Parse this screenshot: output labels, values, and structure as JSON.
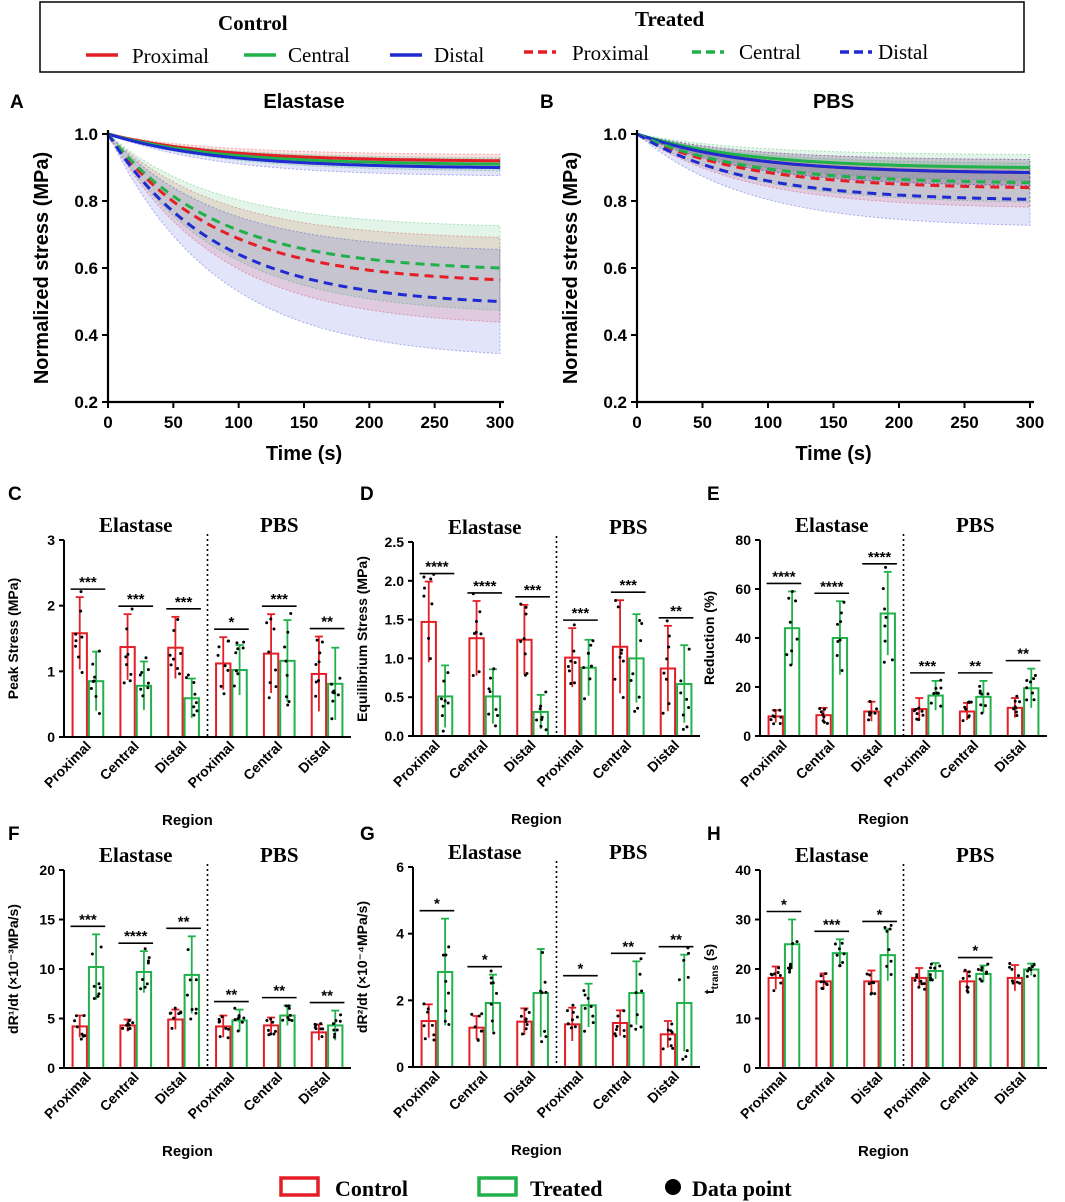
{
  "colors": {
    "control": "#e41e26",
    "treated": "#21b14b",
    "blue": "#1f2bd1",
    "text": "#000000"
  },
  "legend_top": {
    "control_title": "Control",
    "treated_title": "Treated",
    "control_items": [
      "Proximal",
      "Central",
      "Distal"
    ],
    "treated_items": [
      "Proximal",
      "Central",
      "Distal"
    ]
  },
  "legend_bottom": {
    "control": "Control",
    "treated": "Treated",
    "data_point": "Data point"
  },
  "chart_data": [
    {
      "id": "A",
      "type": "line",
      "title": "Elastase",
      "xlabel": "Time (s)",
      "ylabel": "Normalized stress (MPa)",
      "xlim": [
        0,
        300
      ],
      "ylim": [
        0.2,
        1.0
      ],
      "xticks": [
        "0",
        "50",
        "100",
        "150",
        "200",
        "250",
        "300"
      ],
      "yticks": [
        "0.2",
        "0.4",
        "0.6",
        "0.8",
        "1.0"
      ],
      "series": [
        {
          "name": "Control Proximal",
          "color": "#e41e26",
          "dashed": false,
          "end": 0.92,
          "band": 0.02
        },
        {
          "name": "Control Central",
          "color": "#21b14b",
          "dashed": false,
          "end": 0.91,
          "band": 0.02
        },
        {
          "name": "Control Distal",
          "color": "#1f2bd1",
          "dashed": false,
          "end": 0.9,
          "band": 0.025
        },
        {
          "name": "Treated Proximal",
          "color": "#e41e26",
          "dashed": true,
          "end": 0.565,
          "band": 0.13
        },
        {
          "name": "Treated Central",
          "color": "#21b14b",
          "dashed": true,
          "end": 0.6,
          "band": 0.13
        },
        {
          "name": "Treated Distal",
          "color": "#1f2bd1",
          "dashed": true,
          "end": 0.5,
          "band": 0.16
        }
      ]
    },
    {
      "id": "B",
      "type": "line",
      "title": "PBS",
      "xlabel": "Time (s)",
      "ylabel": "Normalized stress (MPa)",
      "xlim": [
        0,
        300
      ],
      "ylim": [
        0.2,
        1.0
      ],
      "xticks": [
        "0",
        "50",
        "100",
        "150",
        "200",
        "250",
        "300"
      ],
      "yticks": [
        "0.2",
        "0.4",
        "0.6",
        "0.8",
        "1.0"
      ],
      "series": [
        {
          "name": "Control Proximal",
          "color": "#e41e26",
          "dashed": false,
          "end": 0.885,
          "band": 0.04
        },
        {
          "name": "Control Central",
          "color": "#21b14b",
          "dashed": false,
          "end": 0.9,
          "band": 0.04
        },
        {
          "name": "Control Distal",
          "color": "#1f2bd1",
          "dashed": false,
          "end": 0.885,
          "band": 0.04
        },
        {
          "name": "Treated Proximal",
          "color": "#e41e26",
          "dashed": true,
          "end": 0.84,
          "band": 0.06
        },
        {
          "name": "Treated Central",
          "color": "#21b14b",
          "dashed": true,
          "end": 0.855,
          "band": 0.06
        },
        {
          "name": "Treated Distal",
          "color": "#1f2bd1",
          "dashed": true,
          "end": 0.805,
          "band": 0.08
        }
      ]
    },
    {
      "id": "C",
      "type": "bar",
      "ylabel": "Peak Stress (MPa)",
      "xlabel": "Region",
      "ylim": [
        0,
        3
      ],
      "yticks": [
        "0",
        "1",
        "2",
        "3"
      ],
      "groups": [
        "Elastase",
        "PBS"
      ],
      "categories": [
        "Proximal",
        "Central",
        "Distal",
        "Proximal",
        "Central",
        "Distal"
      ],
      "control": [
        1.58,
        1.37,
        1.36,
        1.12,
        1.27,
        0.96
      ],
      "control_err": [
        0.55,
        0.5,
        0.47,
        0.4,
        0.6,
        0.57
      ],
      "treated": [
        0.85,
        0.78,
        0.59,
        1.02,
        1.16,
        0.81
      ],
      "treated_err": [
        0.45,
        0.37,
        0.3,
        0.38,
        0.62,
        0.55
      ],
      "sig": [
        "***",
        "***",
        "***",
        "*",
        "***",
        "**"
      ]
    },
    {
      "id": "D",
      "type": "bar",
      "ylabel": "Equilibrium Stress (MPa)",
      "xlabel": "Region",
      "ylim": [
        0,
        2.5
      ],
      "yticks": [
        "0.0",
        "0.5",
        "1.0",
        "1.5",
        "2.0",
        "2.5"
      ],
      "groups": [
        "Elastase",
        "PBS"
      ],
      "categories": [
        "Proximal",
        "Central",
        "Distal",
        "Proximal",
        "Central",
        "Distal"
      ],
      "control": [
        1.47,
        1.26,
        1.24,
        1.01,
        1.15,
        0.87
      ],
      "control_err": [
        0.52,
        0.48,
        0.45,
        0.38,
        0.6,
        0.55
      ],
      "treated": [
        0.51,
        0.51,
        0.31,
        0.88,
        1.0,
        0.67
      ],
      "treated_err": [
        0.4,
        0.35,
        0.22,
        0.36,
        0.57,
        0.5
      ],
      "sig": [
        "****",
        "****",
        "***",
        "***",
        "***",
        "**"
      ]
    },
    {
      "id": "E",
      "type": "bar",
      "ylabel": "Reduction (%)",
      "xlabel": "Region",
      "ylim": [
        0,
        80
      ],
      "yticks": [
        "0",
        "20",
        "40",
        "60",
        "80"
      ],
      "groups": [
        "Elastase",
        "PBS"
      ],
      "categories": [
        "Proximal",
        "Central",
        "Distal",
        "Proximal",
        "Central",
        "Distal"
      ],
      "control": [
        8,
        8.5,
        10,
        11,
        10,
        11.5
      ],
      "control_err": [
        2.5,
        3,
        4,
        4.5,
        3.5,
        4
      ],
      "treated": [
        44,
        40,
        50,
        16.5,
        16,
        19.5
      ],
      "treated_err": [
        15,
        15,
        17,
        6,
        6.5,
        8
      ],
      "sig": [
        "****",
        "****",
        "****",
        "***",
        "**",
        "**"
      ]
    },
    {
      "id": "F",
      "type": "bar",
      "ylabel": "dR¹/dt (×10⁻³MPa/s)",
      "xlabel": "Region",
      "ylim": [
        0,
        20
      ],
      "yticks": [
        "0",
        "5",
        "10",
        "15",
        "20"
      ],
      "groups": [
        "Elastase",
        "PBS"
      ],
      "categories": [
        "Proximal",
        "Central",
        "Distal",
        "Proximal",
        "Central",
        "Distal"
      ],
      "control": [
        4.2,
        4.3,
        4.9,
        4.2,
        4.3,
        3.6
      ],
      "control_err": [
        1.1,
        0.6,
        1.0,
        1.1,
        0.8,
        0.8
      ],
      "treated": [
        10.2,
        9.7,
        9.4,
        4.8,
        5.3,
        4.3
      ],
      "treated_err": [
        3.3,
        2.1,
        3.9,
        1.1,
        1.0,
        1.5
      ],
      "sig": [
        "***",
        "****",
        "**",
        "**",
        "**",
        "**"
      ]
    },
    {
      "id": "G",
      "type": "bar",
      "ylabel": "dR²/dt (×10⁻⁴MPa/s)",
      "xlabel": "Region",
      "ylim": [
        0,
        6
      ],
      "yticks": [
        "0",
        "2",
        "4",
        "6"
      ],
      "groups": [
        "Elastase",
        "PBS"
      ],
      "categories": [
        "Proximal",
        "Central",
        "Distal",
        "Proximal",
        "Central",
        "Distal"
      ],
      "control": [
        1.38,
        1.18,
        1.36,
        1.28,
        1.32,
        0.98
      ],
      "control_err": [
        0.5,
        0.35,
        0.4,
        0.5,
        0.38,
        0.4
      ],
      "treated": [
        2.85,
        1.92,
        2.22,
        1.85,
        2.22,
        1.92
      ],
      "treated_err": [
        1.6,
        0.85,
        1.32,
        0.65,
        0.95,
        1.45
      ],
      "sig": [
        "*",
        "*",
        "",
        "*",
        "**",
        "**"
      ]
    },
    {
      "id": "H",
      "type": "bar",
      "ylabel": "t_trans (s)",
      "xlabel": "Region",
      "ylim": [
        0,
        40
      ],
      "yticks": [
        "0",
        "10",
        "20",
        "30",
        "40"
      ],
      "groups": [
        "Elastase",
        "PBS"
      ],
      "categories": [
        "Proximal",
        "Central",
        "Distal",
        "Proximal",
        "Central",
        "Distal"
      ],
      "control": [
        18.2,
        17.5,
        17.5,
        18.2,
        17.5,
        18.2
      ],
      "control_err": [
        2.3,
        1.6,
        2.2,
        2.0,
        2.0,
        2.6
      ],
      "treated": [
        25,
        23.2,
        22.8,
        19.6,
        19,
        19.9
      ],
      "treated_err": [
        5,
        2.8,
        5.2,
        1.6,
        1.7,
        1.2
      ],
      "sig": [
        "*",
        "***",
        "*",
        "",
        "*",
        ""
      ]
    }
  ]
}
